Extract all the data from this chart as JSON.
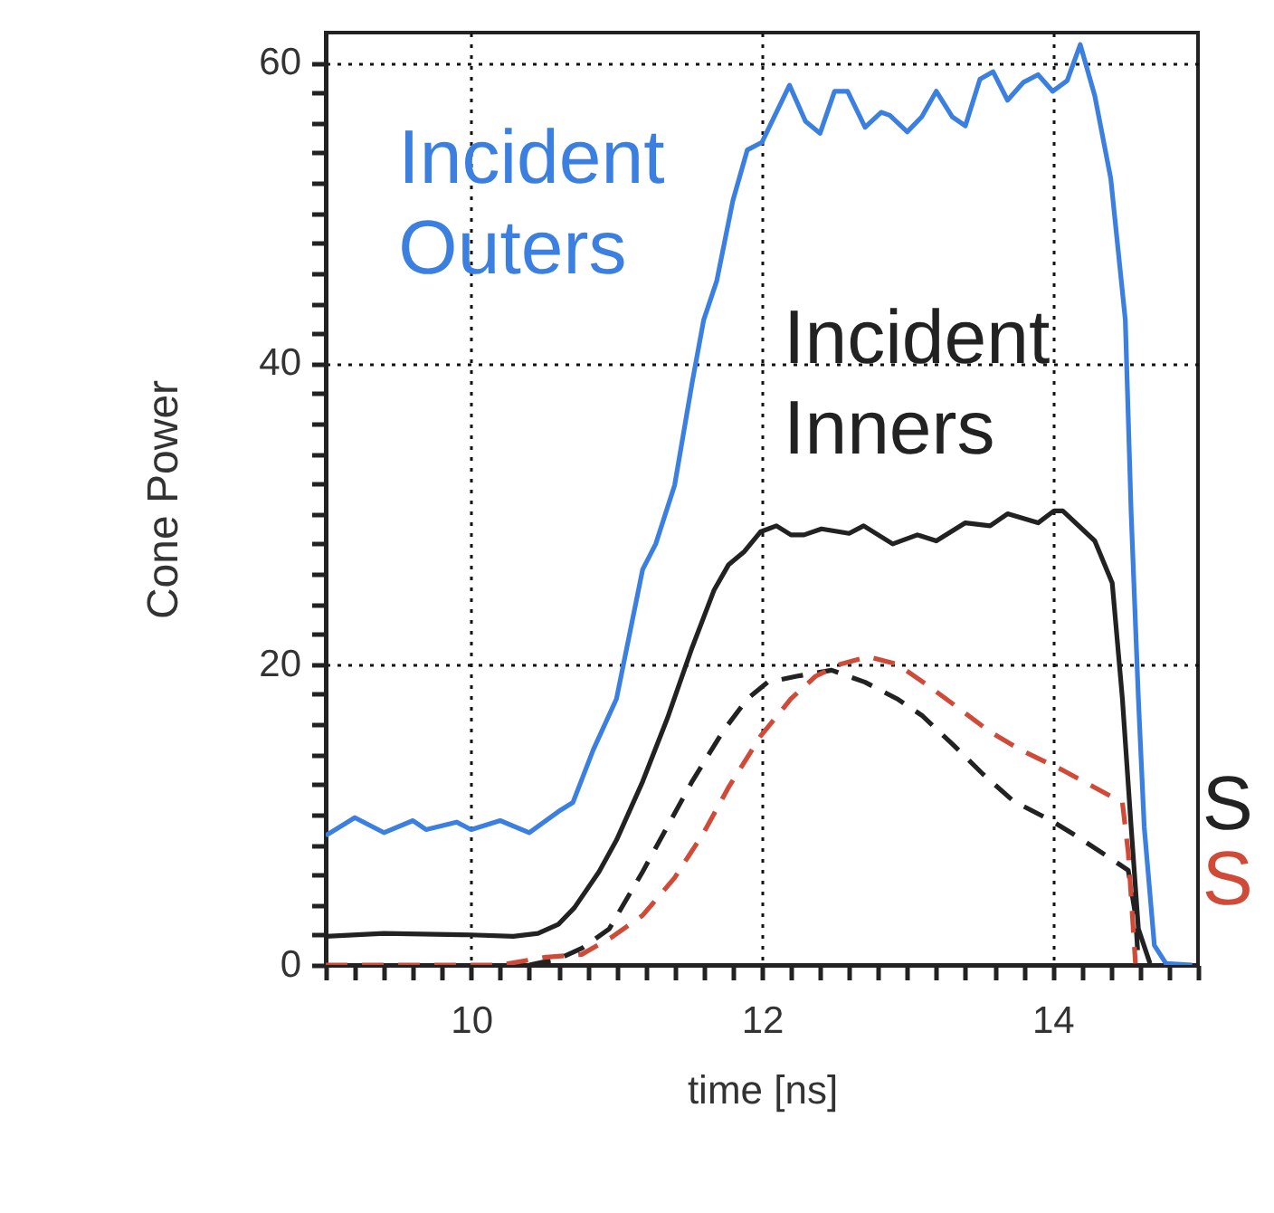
{
  "chart_data": {
    "type": "line",
    "xlabel": "time  [ns]",
    "ylabel": "Cone Power",
    "xlim": [
      9,
      15
    ],
    "ylim": [
      0,
      62
    ],
    "xticks": [
      {
        "value": 9,
        "label": null
      },
      {
        "value": 9.2,
        "label": null
      },
      {
        "value": 9.4,
        "label": null
      },
      {
        "value": 9.6,
        "label": null
      },
      {
        "value": 9.8,
        "label": null
      },
      10,
      {
        "value": 10.2,
        "label": null
      },
      {
        "value": 10.4,
        "label": null
      },
      {
        "value": 10.6,
        "label": null
      },
      {
        "value": 10.8,
        "label": null
      },
      {
        "value": 11,
        "label": null
      },
      {
        "value": 11.2,
        "label": null
      },
      {
        "value": 11.4,
        "label": null
      },
      {
        "value": 11.6,
        "label": null
      },
      {
        "value": 11.8,
        "label": null
      },
      12,
      {
        "value": 12.2,
        "label": null
      },
      {
        "value": 12.4,
        "label": null
      },
      {
        "value": 12.6,
        "label": null
      },
      {
        "value": 12.8,
        "label": null
      },
      {
        "value": 13,
        "label": null
      },
      {
        "value": 13.2,
        "label": null
      },
      {
        "value": 13.4,
        "label": null
      },
      {
        "value": 13.6,
        "label": null
      },
      {
        "value": 13.8,
        "label": null
      },
      14,
      {
        "value": 14.2,
        "label": null
      },
      {
        "value": 14.4,
        "label": null
      },
      {
        "value": 14.6,
        "label": null
      },
      {
        "value": 14.8,
        "label": null
      },
      {
        "value": 15,
        "label": null
      }
    ],
    "yticks": [
      0,
      {
        "value": 2,
        "label": null
      },
      {
        "value": 4,
        "label": null
      },
      {
        "value": 6,
        "label": null
      },
      {
        "value": 8,
        "label": null
      },
      {
        "value": 10,
        "label": null
      },
      {
        "value": 12,
        "label": null
      },
      {
        "value": 14,
        "label": null
      },
      {
        "value": 16,
        "label": null
      },
      {
        "value": 18,
        "label": null
      },
      20,
      {
        "value": 22,
        "label": null
      },
      {
        "value": 24,
        "label": null
      },
      {
        "value": 26,
        "label": null
      },
      {
        "value": 28,
        "label": null
      },
      {
        "value": 30,
        "label": null
      },
      {
        "value": 32,
        "label": null
      },
      {
        "value": 34,
        "label": null
      },
      {
        "value": 36,
        "label": null
      },
      {
        "value": 38,
        "label": null
      },
      40,
      {
        "value": 42,
        "label": null
      },
      {
        "value": 44,
        "label": null
      },
      {
        "value": 46,
        "label": null
      },
      {
        "value": 48,
        "label": null
      },
      {
        "value": 50,
        "label": null
      },
      {
        "value": 52,
        "label": null
      },
      {
        "value": 54,
        "label": null
      },
      {
        "value": 56,
        "label": null
      },
      {
        "value": 58,
        "label": null
      },
      60
    ],
    "grid": true,
    "legend": false,
    "marker": "none",
    "series": [
      {
        "name": "Incident Outers",
        "color": "#3b7fe0",
        "line_style": "solid",
        "x": [
          9.0,
          9.2,
          9.4,
          9.6,
          9.69,
          9.9,
          10.0,
          10.2,
          10.4,
          10.6,
          10.7,
          10.84,
          11.0,
          11.18,
          11.27,
          11.4,
          11.52,
          11.6,
          11.69,
          11.8,
          11.9,
          12.0,
          12.19,
          12.3,
          12.4,
          12.5,
          12.59,
          12.71,
          12.82,
          12.88,
          13.0,
          13.1,
          13.2,
          13.31,
          13.4,
          13.5,
          13.59,
          13.69,
          13.8,
          13.9,
          14.0,
          14.1,
          14.19,
          14.29,
          14.4,
          14.5,
          14.54,
          14.59,
          14.63,
          14.7,
          14.78,
          14.96
        ],
        "values": [
          8.6,
          9.8,
          8.8,
          9.6,
          9.0,
          9.5,
          9.0,
          9.6,
          8.8,
          10.2,
          10.8,
          14.3,
          17.7,
          26.3,
          28.0,
          31.9,
          38.7,
          42.9,
          45.5,
          50.8,
          54.2,
          54.7,
          58.5,
          56.1,
          55.3,
          58.1,
          58.1,
          55.7,
          56.7,
          56.5,
          55.4,
          56.4,
          58.1,
          56.4,
          55.8,
          58.9,
          59.4,
          57.5,
          58.7,
          59.2,
          58.1,
          58.8,
          61.2,
          57.8,
          52.3,
          42.9,
          30.1,
          17.7,
          9.2,
          1.3,
          0.1,
          0
        ]
      },
      {
        "name": "Incident Inners",
        "color": "#222222",
        "line_style": "solid",
        "x": [
          9.0,
          9.4,
          10.0,
          10.29,
          10.46,
          10.6,
          10.71,
          10.88,
          11.0,
          11.18,
          11.35,
          11.52,
          11.67,
          11.77,
          11.88,
          11.99,
          12.1,
          12.2,
          12.29,
          12.41,
          12.6,
          12.7,
          12.9,
          13.07,
          13.2,
          13.4,
          13.57,
          13.69,
          13.9,
          14.01,
          14.07,
          14.29,
          14.41,
          14.48,
          14.54,
          14.59,
          14.67
        ],
        "values": [
          1.9,
          2.1,
          2.0,
          1.9,
          2.1,
          2.7,
          3.8,
          6.2,
          8.3,
          12.2,
          16.4,
          21.1,
          24.9,
          26.6,
          27.5,
          28.8,
          29.2,
          28.6,
          28.6,
          29.0,
          28.7,
          29.2,
          28.0,
          28.6,
          28.2,
          29.4,
          29.2,
          30.0,
          29.4,
          30.2,
          30.2,
          28.2,
          25.4,
          17.7,
          9.2,
          2.4,
          0.1
        ]
      },
      {
        "name": "S",
        "color": "#222222",
        "line_style": "dashed",
        "x": [
          10.4,
          10.6,
          10.76,
          10.95,
          11.18,
          11.35,
          11.52,
          11.73,
          11.9,
          12.04,
          12.24,
          12.48,
          12.71,
          12.93,
          13.1,
          13.31,
          13.52,
          13.73,
          13.99,
          14.16,
          14.38,
          14.52,
          14.57,
          14.59
        ],
        "values": [
          0,
          0.4,
          1.1,
          2.4,
          6.2,
          9.2,
          12.2,
          15.5,
          17.7,
          18.8,
          19.2,
          19.6,
          18.8,
          17.7,
          16.6,
          14.7,
          12.7,
          10.9,
          9.6,
          8.6,
          7.2,
          6.3,
          3.3,
          0.1
        ]
      },
      {
        "name": "S",
        "color": "#d04a38",
        "line_style": "dashed",
        "x": [
          9.0,
          10.2,
          10.5,
          10.76,
          10.96,
          11.18,
          11.4,
          11.6,
          11.77,
          11.99,
          12.2,
          12.37,
          12.54,
          12.73,
          12.93,
          13.14,
          13.35,
          13.57,
          13.78,
          14.06,
          14.29,
          14.48,
          14.52,
          14.57
        ],
        "values": [
          0,
          0,
          0.5,
          0.7,
          1.8,
          3.3,
          5.8,
          8.8,
          11.8,
          15.2,
          17.7,
          19.2,
          20.0,
          20.5,
          20.0,
          18.6,
          17.1,
          15.5,
          14.3,
          13.0,
          11.8,
          10.8,
          7.5,
          0.1
        ]
      }
    ]
  }
}
